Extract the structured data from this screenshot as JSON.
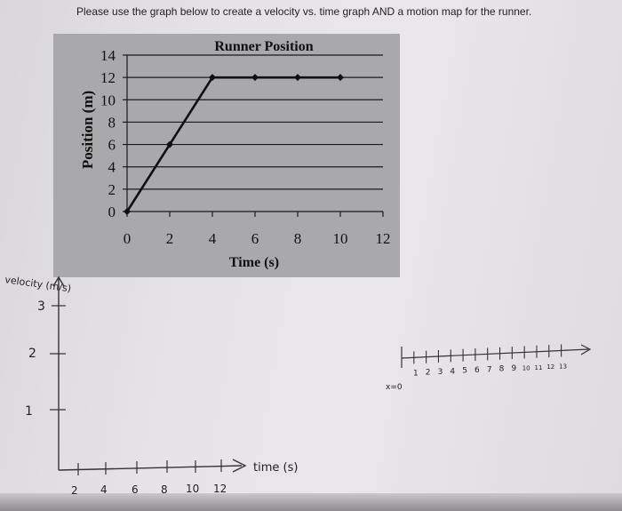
{
  "instruction": "Please use the graph below to create a velocity vs. time graph AND a motion map for the runner.",
  "chart_data": {
    "type": "line",
    "title": "Runner Position",
    "xlabel": "Time (s)",
    "ylabel": "Position (m)",
    "x": [
      0,
      2,
      4,
      6,
      8,
      10
    ],
    "series": [
      {
        "values": [
          0,
          6,
          12,
          12,
          12,
          12
        ]
      }
    ],
    "xlim": [
      0,
      12
    ],
    "ylim": [
      0,
      14
    ],
    "xticks": [
      "0",
      "2",
      "4",
      "6",
      "8",
      "10",
      "12"
    ],
    "yticks": [
      "0",
      "2",
      "4",
      "6",
      "8",
      "10",
      "12",
      "14"
    ],
    "grid": "horizontal",
    "line_color": "#111111",
    "panel_color": "#a9a8ab"
  },
  "velocity_graph": {
    "ylabel": "velocity (m/s)",
    "yticks": [
      "1",
      "2",
      "3"
    ],
    "xlabel": "time (s)",
    "xticks": [
      "2",
      "4",
      "6",
      "8",
      "10",
      "12"
    ]
  },
  "motion_map": {
    "origin_label": "x=0",
    "ticks": [
      "1",
      "2",
      "3",
      "4",
      "5",
      "6",
      "7",
      "8",
      "9",
      "10",
      "11",
      "12",
      "13"
    ]
  }
}
